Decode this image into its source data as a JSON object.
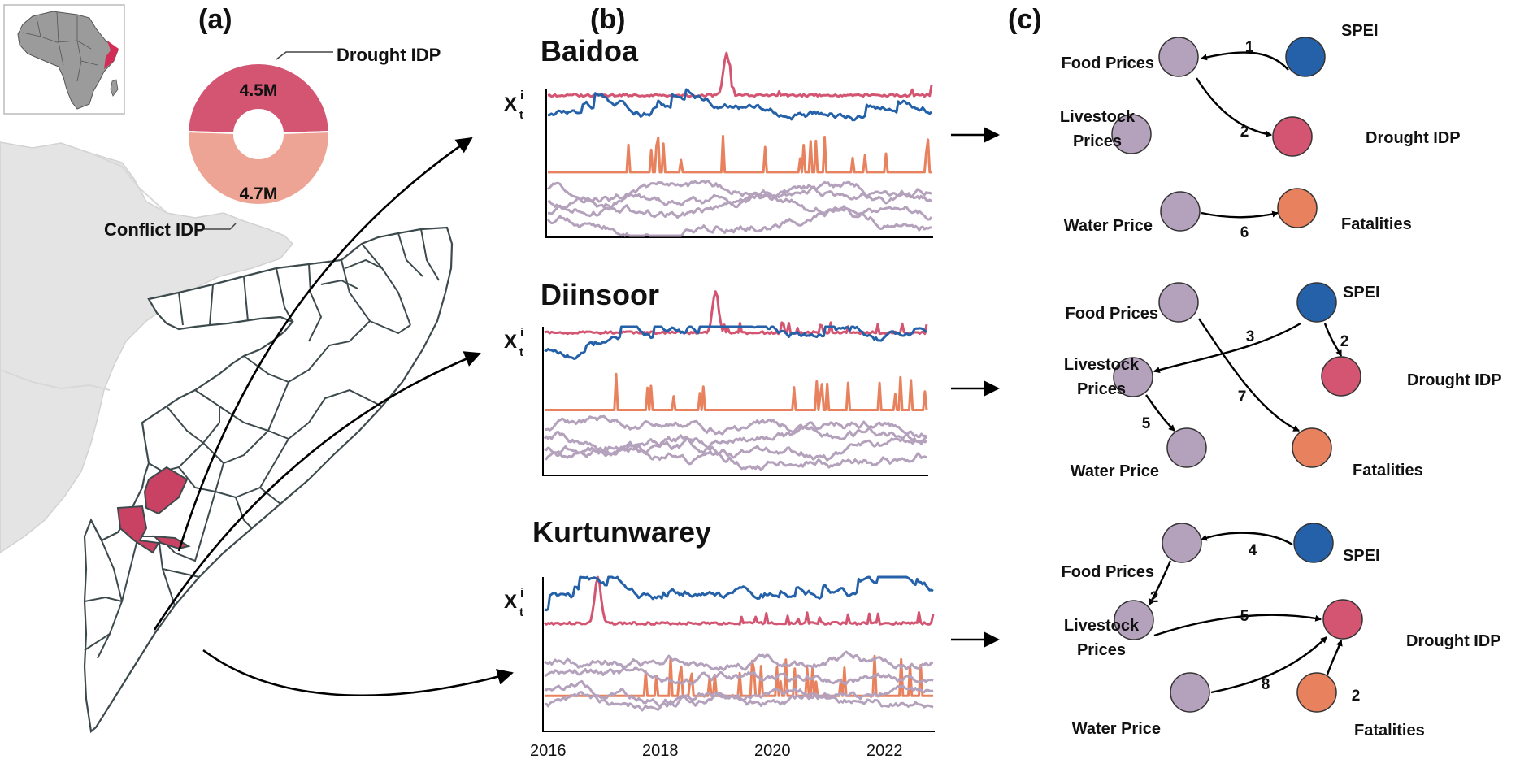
{
  "panels": {
    "a": "(a)",
    "b": "(b)",
    "c": "(c)"
  },
  "colors": {
    "drought": "#d35572",
    "conflict": "#eea494",
    "spei": "#2461a9",
    "purple": "#b4a1bc",
    "orange": "#e8815d"
  },
  "donut": {
    "drought_label": "Drought IDP",
    "conflict_label": "Conflict IDP",
    "drought_value": "4.5M",
    "conflict_value": "4.7M",
    "drought_fraction": 0.489,
    "conflict_fraction": 0.511
  },
  "timeseries": {
    "y_label": "X",
    "y_sub": "t",
    "y_sup": "i",
    "x_ticks": [
      "2016",
      "2018",
      "2020",
      "2022"
    ],
    "locations": [
      "Baidoa",
      "Diinsoor",
      "Kurtunwarey"
    ]
  },
  "networks": [
    {
      "nodes": {
        "food": "Food Prices",
        "spei": "SPEI",
        "livestock_1": "Livestock",
        "livestock_2": "Prices",
        "drought": "Drought IDP",
        "water": "Water Price",
        "fatalities": "Fatalities"
      },
      "edges": [
        {
          "from": "SPEI",
          "to": "Food Prices",
          "lag": "1"
        },
        {
          "from": "Food Prices",
          "to": "Drought IDP",
          "lag": "2"
        },
        {
          "from": "Water Price",
          "to": "Fatalities",
          "lag": "6"
        }
      ]
    },
    {
      "nodes": {
        "food": "Food Prices",
        "spei": "SPEI",
        "livestock_1": "Livestock",
        "livestock_2": "Prices",
        "drought": "Drought IDP",
        "water": "Water Price",
        "fatalities": "Fatalities"
      },
      "edges": [
        {
          "from": "SPEI",
          "to": "Livestock Prices",
          "lag": "3"
        },
        {
          "from": "SPEI",
          "to": "Drought IDP",
          "lag": "2"
        },
        {
          "from": "Food Prices",
          "to": "Fatalities",
          "lag": "7"
        },
        {
          "from": "Livestock Prices",
          "to": "Water Price",
          "lag": "5"
        }
      ]
    },
    {
      "nodes": {
        "food": "Food Prices",
        "spei": "SPEI",
        "livestock_1": "Livestock",
        "livestock_2": "Prices",
        "drought": "Drought IDP",
        "water": "Water Price",
        "fatalities": "Fatalities"
      },
      "edges": [
        {
          "from": "SPEI",
          "to": "Food Prices",
          "lag": "4"
        },
        {
          "from": "Food Prices",
          "to": "Livestock Prices",
          "lag": "2"
        },
        {
          "from": "Livestock Prices",
          "to": "Drought IDP",
          "lag": "5"
        },
        {
          "from": "Water Price",
          "to": "Drought IDP",
          "lag": "8"
        },
        {
          "from": "Fatalities",
          "to": "Drought IDP",
          "lag": "2"
        }
      ]
    }
  ]
}
